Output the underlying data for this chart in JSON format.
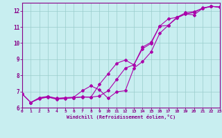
{
  "xlabel": "Windchill (Refroidissement éolien,°C)",
  "bg_color": "#c8eef0",
  "line_color": "#aa00aa",
  "grid_color": "#99cccc",
  "axis_color": "#880088",
  "x_min": 0,
  "x_max": 23,
  "y_min": 6.0,
  "y_max": 12.5,
  "x_ticks": [
    0,
    1,
    2,
    3,
    4,
    5,
    6,
    7,
    8,
    9,
    10,
    11,
    12,
    13,
    14,
    15,
    16,
    17,
    18,
    19,
    20,
    21,
    22,
    23
  ],
  "y_ticks": [
    6,
    7,
    8,
    9,
    10,
    11,
    12
  ],
  "curve1_x": [
    0,
    1,
    2,
    3,
    4,
    5,
    6,
    7,
    8,
    9,
    10,
    11,
    12,
    13,
    14,
    15,
    16,
    17,
    18,
    19,
    20,
    21,
    22,
    23
  ],
  "curve1_y": [
    6.85,
    6.32,
    6.55,
    6.65,
    6.52,
    6.57,
    6.62,
    6.67,
    6.65,
    6.72,
    7.05,
    7.75,
    8.45,
    8.65,
    9.75,
    10.05,
    11.05,
    11.1,
    11.6,
    11.8,
    11.75,
    12.15,
    12.28,
    12.23
  ],
  "curve2_x": [
    0,
    1,
    2,
    3,
    4,
    5,
    6,
    7,
    8,
    9,
    10,
    11,
    12,
    13,
    14,
    15,
    16,
    17,
    18,
    19,
    20,
    21,
    22,
    23
  ],
  "curve2_y": [
    6.85,
    6.32,
    6.62,
    6.7,
    6.58,
    6.62,
    6.65,
    7.05,
    7.35,
    7.1,
    6.58,
    6.98,
    7.05,
    8.45,
    8.85,
    9.45,
    10.6,
    11.1,
    11.55,
    11.8,
    11.9,
    12.18,
    12.28,
    12.23
  ],
  "curve3_x": [
    1,
    2,
    3,
    4,
    5,
    6,
    7,
    8,
    9,
    10,
    11,
    12,
    13,
    14,
    15,
    16,
    17,
    18,
    19,
    20,
    21,
    22,
    23
  ],
  "curve3_y": [
    6.32,
    6.58,
    6.68,
    6.55,
    6.58,
    6.62,
    6.65,
    6.65,
    7.45,
    8.1,
    8.75,
    8.95,
    8.65,
    9.65,
    9.98,
    11.05,
    11.5,
    11.6,
    11.88,
    11.95,
    12.15,
    12.28,
    12.23
  ]
}
